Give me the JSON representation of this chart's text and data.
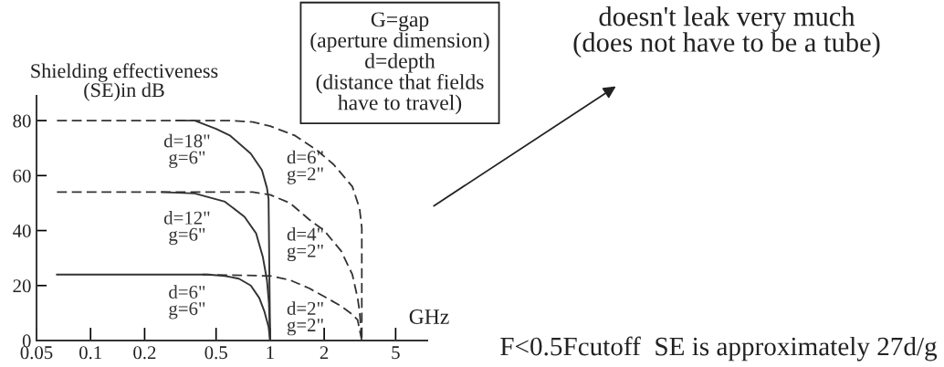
{
  "chart_data": {
    "type": "line",
    "xlabel": "GHz",
    "ylabel": "Shielding effectiveness\n(SE)in dB",
    "log": "x",
    "xlim": [
      0.05,
      7.5
    ],
    "xticks": [
      0.05,
      0.1,
      0.2,
      0.5,
      1,
      2,
      5
    ],
    "ylim": [
      0,
      89
    ],
    "yticks": [
      0,
      20,
      40,
      60,
      80
    ],
    "series": [
      {
        "name": "d=18\"\ng=6\"",
        "color": "#333333",
        "line_style": "solid",
        "x": [
          0.3,
          0.38,
          0.5,
          0.6,
          0.78,
          0.9,
          0.96,
          0.98,
          1.0
        ],
        "values": [
          80,
          80,
          77,
          74.5,
          68,
          62,
          55.5,
          51.5,
          0
        ]
      },
      {
        "name": "d=12\"\ng=6\"",
        "color": "#333333",
        "line_style": "solid",
        "x": [
          0.25,
          0.38,
          0.56,
          0.72,
          0.835,
          0.91,
          0.96,
          0.985,
          1.0
        ],
        "values": [
          54,
          53.5,
          50.5,
          45,
          39,
          30.5,
          22,
          13.5,
          0
        ]
      },
      {
        "name": "d=6\"\ng=6\"",
        "color": "#333333",
        "line_style": "solid",
        "x": [
          0.065,
          0.45,
          0.56,
          0.67,
          0.78,
          0.87,
          0.93,
          0.98,
          1.0
        ],
        "values": [
          24,
          24,
          23.5,
          22.5,
          20,
          15.5,
          10.5,
          5,
          0
        ]
      },
      {
        "name": "d=6\"\ng=2\"",
        "color": "#333333",
        "line_style": "dashed",
        "x": [
          0.065,
          0.6,
          0.8,
          1.0,
          1.38,
          1.84,
          2.26,
          2.87,
          3.15,
          3.24,
          3.24
        ],
        "values": [
          80,
          80,
          79.5,
          78,
          74.5,
          69,
          64,
          56,
          48,
          41,
          0
        ]
      },
      {
        "name": "d=4\"\ng=2\"",
        "color": "#333333",
        "line_style": "dashed",
        "x": [
          0.065,
          0.8,
          1.0,
          1.29,
          1.65,
          2.0,
          2.49,
          2.87,
          3.07,
          3.15,
          3.24
        ],
        "values": [
          54,
          54,
          53,
          50,
          44,
          40,
          32.5,
          24,
          15.5,
          10.5,
          0
        ]
      },
      {
        "name": "d=2\"\ng=2\"",
        "color": "#333333",
        "line_style": "dashed",
        "x": [
          0.42,
          1.0,
          1.29,
          1.65,
          2.0,
          2.49,
          2.87,
          3.07,
          3.24
        ],
        "values": [
          24,
          23.5,
          22,
          19,
          16,
          12.5,
          9.5,
          7.5,
          0
        ]
      }
    ],
    "annotations": [
      "G=gap\n(aperture dimension)\nd=depth\n(distance that fields\nhave to travel)",
      "doesn't leak very much\n(does not have to be a tube)",
      "F<0.5Fcutoff  SE is approximately 27d/g"
    ]
  }
}
